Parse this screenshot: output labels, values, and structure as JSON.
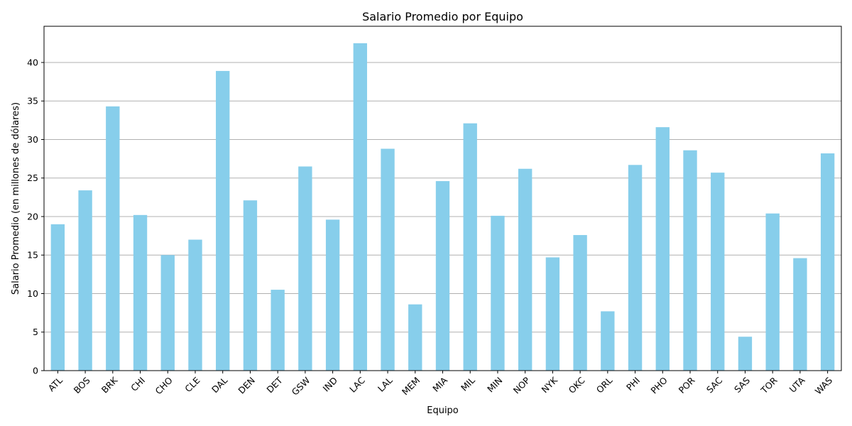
{
  "chart_data": {
    "type": "bar",
    "title": "Salario Promedio por Equipo",
    "xlabel": "Equipo",
    "ylabel": "Salario Promedio (en millones de dólares)",
    "ylim": [
      0,
      44.7
    ],
    "yticks": [
      0,
      5,
      10,
      15,
      20,
      25,
      30,
      35,
      40
    ],
    "grid": "y",
    "bar_color": "#87ceeb",
    "categories": [
      "ATL",
      "BOS",
      "BRK",
      "CHI",
      "CHO",
      "CLE",
      "DAL",
      "DEN",
      "DET",
      "GSW",
      "IND",
      "LAC",
      "LAL",
      "MEM",
      "MIA",
      "MIL",
      "MIN",
      "NOP",
      "NYK",
      "OKC",
      "ORL",
      "PHI",
      "PHO",
      "POR",
      "SAC",
      "SAS",
      "TOR",
      "UTA",
      "WAS"
    ],
    "values": [
      19.0,
      23.4,
      34.3,
      20.2,
      15.0,
      17.0,
      38.9,
      22.1,
      10.5,
      26.5,
      19.6,
      42.5,
      28.8,
      8.6,
      24.6,
      32.1,
      20.1,
      26.2,
      14.7,
      17.6,
      7.7,
      26.7,
      31.6,
      28.6,
      25.7,
      4.4,
      20.4,
      14.6,
      28.2
    ]
  }
}
